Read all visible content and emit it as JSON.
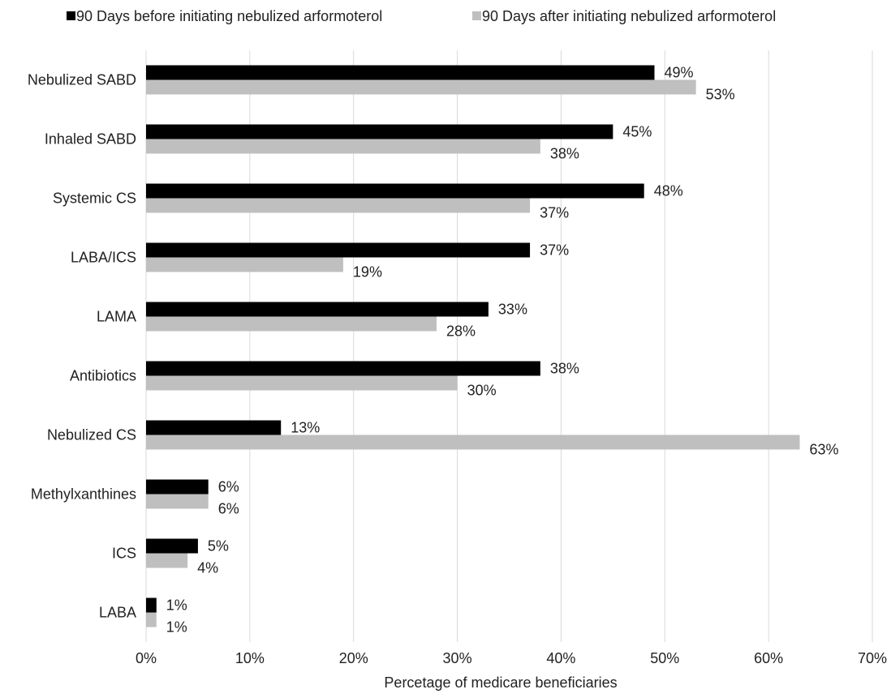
{
  "chart_data": {
    "type": "bar",
    "orientation": "horizontal",
    "categories": [
      "Nebulized SABD",
      "Inhaled SABD",
      "Systemic CS",
      "LABA/ICS",
      "LAMA",
      "Antibiotics",
      "Nebulized CS",
      "Methylxanthines",
      "ICS",
      "LABA"
    ],
    "series": [
      {
        "name": "90 Days before initiating nebulized arformoterol",
        "values": [
          49,
          45,
          48,
          37,
          33,
          38,
          13,
          6,
          5,
          1
        ],
        "labels": [
          "49%",
          "45%",
          "48%",
          "37%",
          "33%",
          "38%",
          "13%",
          "6%",
          "5%",
          "1%"
        ],
        "color": "#000000"
      },
      {
        "name": "90 Days after initiating nebulized arformoterol",
        "values": [
          53,
          38,
          37,
          19,
          28,
          30,
          63,
          6,
          4,
          1
        ],
        "labels": [
          "53%",
          "38%",
          "37%",
          "19%",
          "28%",
          "30%",
          "63%",
          "6%",
          "4%",
          "1%"
        ],
        "color": "#bfbfbf"
      }
    ],
    "xlabel": "Percetage of medicare beneficiaries",
    "ylabel": "",
    "title": "",
    "xlim": [
      0,
      70
    ],
    "xticks": [
      0,
      10,
      20,
      30,
      40,
      50,
      60,
      70
    ],
    "xtick_labels": [
      "0%",
      "10%",
      "20%",
      "30%",
      "40%",
      "50%",
      "60%",
      "70%"
    ],
    "grid": "vertical",
    "legend_position": "top"
  }
}
